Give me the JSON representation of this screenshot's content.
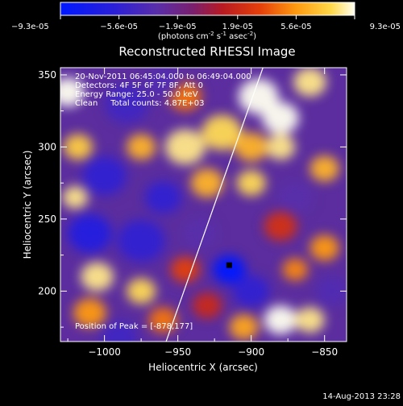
{
  "chart_data": {
    "type": "heatmap",
    "title": "Reconstructed RHESSI Image",
    "xlabel": "Heliocentric X (arcsec)",
    "ylabel": "Heliocentric Y (arcsec)",
    "xlim": [
      -1030,
      -835
    ],
    "ylim": [
      165,
      355
    ],
    "x_ticks": [
      -1000,
      -950,
      -900,
      -850
    ],
    "y_ticks": [
      200,
      250,
      300,
      350
    ],
    "colorbar": {
      "ticks": [
        "-9.3e-05",
        "-5.6e-05",
        "-1.9e-05",
        "1.9e-05",
        "5.6e-05",
        "9.3e-05"
      ],
      "min": -9.3e-05,
      "max": 9.3e-05,
      "unit_label": "(photons cm",
      "unit_exp1": "-2",
      "unit_mid": " s",
      "unit_exp2": "-1",
      "unit_end": " asec",
      "unit_exp3": "-2",
      "unit_close": ")"
    },
    "annotations": [
      "20-Nov-2011 06:45:04.000 to 06:49:04.000",
      "Detectors: 4F 5F 6F 7F 8F, Att 0",
      "Energy Range: 25.0 - 50.0 keV",
      "Clean     Total counts: 4.87E+03"
    ],
    "peak_label": "Position of Peak = [-878,177]",
    "peak": [
      -878,
      177
    ],
    "limb_line": [
      [
        -958,
        165
      ],
      [
        -892,
        355
      ]
    ],
    "grid": false,
    "intensity_blobs": [
      {
        "x": -1025,
        "y": 338,
        "v": 1.0,
        "r": 9
      },
      {
        "x": -1018,
        "y": 300,
        "v": 0.8,
        "r": 8
      },
      {
        "x": -1020,
        "y": 265,
        "v": 0.9,
        "r": 7
      },
      {
        "x": -1000,
        "y": 280,
        "v": -0.6,
        "r": 12
      },
      {
        "x": -985,
        "y": 330,
        "v": -0.5,
        "r": 12
      },
      {
        "x": -975,
        "y": 300,
        "v": 0.7,
        "r": 8
      },
      {
        "x": -945,
        "y": 335,
        "v": 0.5,
        "r": 9
      },
      {
        "x": -960,
        "y": 345,
        "v": -0.4,
        "r": 9
      },
      {
        "x": -1010,
        "y": 240,
        "v": -0.7,
        "r": 12
      },
      {
        "x": -975,
        "y": 235,
        "v": -0.6,
        "r": 13
      },
      {
        "x": -1005,
        "y": 210,
        "v": 0.9,
        "r": 9
      },
      {
        "x": -975,
        "y": 200,
        "v": 0.85,
        "r": 8
      },
      {
        "x": -1010,
        "y": 185,
        "v": 0.6,
        "r": 9
      },
      {
        "x": -990,
        "y": 168,
        "v": -0.5,
        "r": 10
      },
      {
        "x": -960,
        "y": 180,
        "v": 0.5,
        "r": 8
      },
      {
        "x": -945,
        "y": 215,
        "v": 0.35,
        "r": 8
      },
      {
        "x": -935,
        "y": 240,
        "v": -0.35,
        "r": 10
      },
      {
        "x": -915,
        "y": 215,
        "v": -1.0,
        "r": 9
      },
      {
        "x": -900,
        "y": 200,
        "v": -0.6,
        "r": 10
      },
      {
        "x": -930,
        "y": 275,
        "v": 0.7,
        "r": 9
      },
      {
        "x": -945,
        "y": 300,
        "v": 0.9,
        "r": 11
      },
      {
        "x": -920,
        "y": 310,
        "v": 0.85,
        "r": 11
      },
      {
        "x": -895,
        "y": 335,
        "v": 1.0,
        "r": 11
      },
      {
        "x": -880,
        "y": 320,
        "v": 1.0,
        "r": 10
      },
      {
        "x": -860,
        "y": 345,
        "v": 0.9,
        "r": 9
      },
      {
        "x": -900,
        "y": 300,
        "v": 0.7,
        "r": 9
      },
      {
        "x": -880,
        "y": 300,
        "v": 0.9,
        "r": 8
      },
      {
        "x": -900,
        "y": 275,
        "v": 0.85,
        "r": 8
      },
      {
        "x": -870,
        "y": 265,
        "v": -0.35,
        "r": 10
      },
      {
        "x": -850,
        "y": 285,
        "v": 0.7,
        "r": 8
      },
      {
        "x": -850,
        "y": 230,
        "v": 0.6,
        "r": 8
      },
      {
        "x": -880,
        "y": 245,
        "v": 0.25,
        "r": 9
      },
      {
        "x": -870,
        "y": 215,
        "v": 0.55,
        "r": 7
      },
      {
        "x": -880,
        "y": 180,
        "v": 1.0,
        "r": 9
      },
      {
        "x": -860,
        "y": 180,
        "v": 0.9,
        "r": 8
      },
      {
        "x": -905,
        "y": 175,
        "v": 0.65,
        "r": 8
      },
      {
        "x": -845,
        "y": 200,
        "v": -0.4,
        "r": 9
      },
      {
        "x": -930,
        "y": 190,
        "v": 0.2,
        "r": 8
      },
      {
        "x": -960,
        "y": 265,
        "v": -0.6,
        "r": 10
      },
      {
        "x": -1025,
        "y": 170,
        "v": -0.3,
        "r": 9
      }
    ]
  },
  "footer": {
    "timestamp": "14-Aug-2013 23:28"
  }
}
